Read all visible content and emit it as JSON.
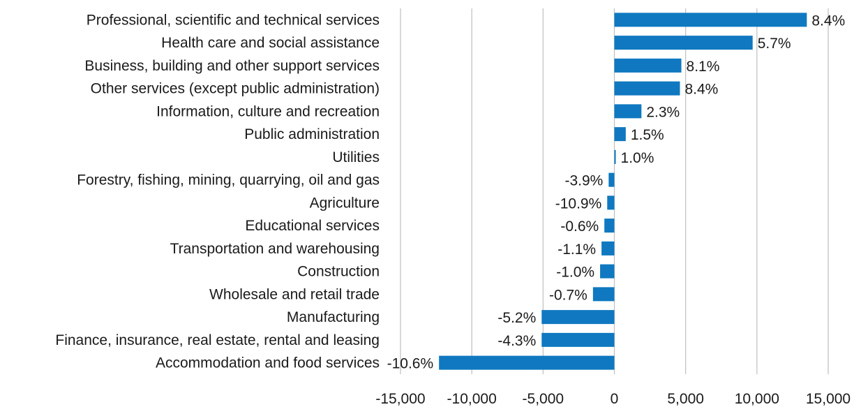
{
  "chart_data": {
    "type": "bar",
    "orientation": "horizontal",
    "categories": [
      "Professional, scientific and technical services",
      "Health care and social assistance",
      "Business, building and other support services",
      "Other services (except public administration)",
      "Information, culture and recreation",
      "Public administration",
      "Utilities",
      "Forestry, fishing, mining, quarrying, oil and gas",
      "Agriculture",
      "Educational services",
      "Transportation and warehousing",
      "Construction",
      "Wholesale and retail trade",
      "Manufacturing",
      "Finance, insurance, real estate, rental and leasing",
      "Accommodation and food services"
    ],
    "values": [
      13500,
      9700,
      4700,
      4600,
      1900,
      800,
      100,
      -400,
      -500,
      -700,
      -900,
      -1000,
      -1500,
      -5100,
      -5100,
      -12300
    ],
    "data_labels": [
      "8.4%",
      "5.7%",
      "8.1%",
      "8.4%",
      "2.3%",
      "1.5%",
      "1.0%",
      "-3.9%",
      "-10.9%",
      "-0.6%",
      "-1.1%",
      "-1.0%",
      "-0.7%",
      "-5.2%",
      "-4.3%",
      "-10.6%"
    ],
    "xlim": [
      -15000,
      15000
    ],
    "x_ticks": [
      -15000,
      -10000,
      -5000,
      0,
      5000,
      10000,
      15000
    ],
    "x_tick_labels": [
      "-15,000",
      "-10,000",
      "-5,000",
      "0",
      "5,000",
      "10,000",
      "15,000"
    ],
    "title": "",
    "xlabel": "",
    "ylabel": "",
    "grid": "vertical",
    "legend": "none",
    "bar_color": "#0F78C0",
    "grid_color": "#BFBFBF",
    "text_color": "#1a1a1a"
  }
}
